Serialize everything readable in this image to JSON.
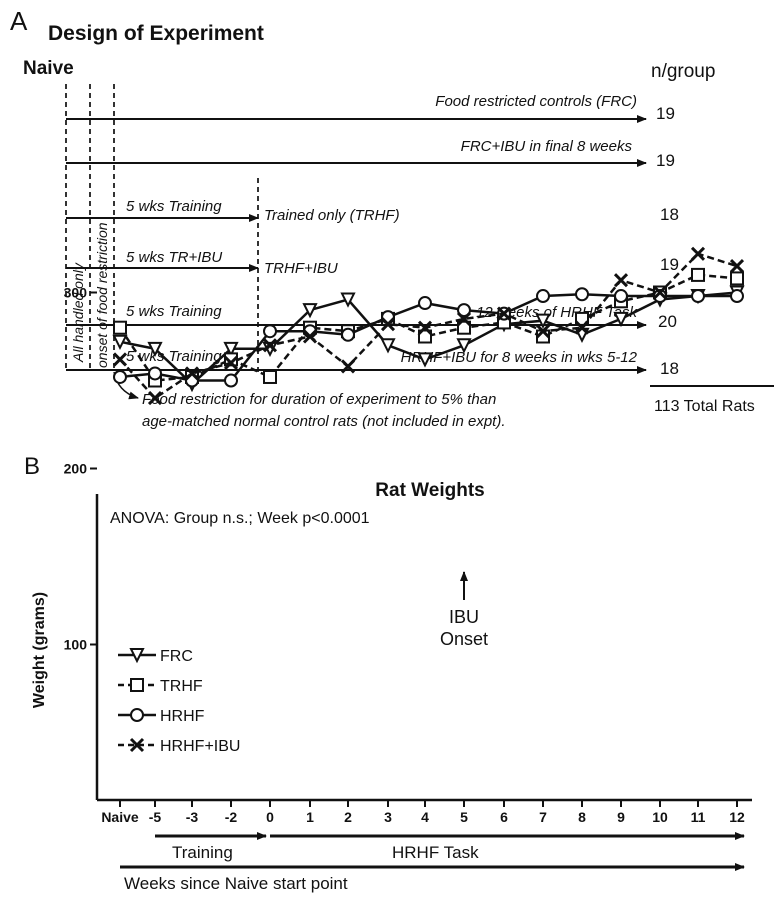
{
  "panel_a": {
    "panel_letter": "A",
    "title": "Design of Experiment",
    "naive_label": "Naive",
    "n_header": "n/group",
    "vertical_labels": [
      "All handled only",
      "onset of food restriction"
    ],
    "rows": [
      {
        "training_label": "",
        "group_label": "Food restricted controls (FRC)",
        "n": "19"
      },
      {
        "training_label": "",
        "group_label": "FRC+IBU in final 8 weeks",
        "n": "19"
      },
      {
        "training_label": "5 wks Training",
        "group_label": "Trained only (TRHF)",
        "n": "18"
      },
      {
        "training_label": "5 wks TR+IBU",
        "group_label": "TRHF+IBU",
        "n": "19"
      },
      {
        "training_label": "5 wks Training",
        "group_label": "12 weeks of HRHF Task",
        "n": "20"
      },
      {
        "training_label": "5 wks Training",
        "group_label": "HRHF+IBU for 8 weeks in wks 5-12",
        "n": "18"
      }
    ],
    "total_label": "113 Total Rats",
    "footnote_line1": "Food restriction for duration of experiment to 5% than",
    "footnote_line2": "age-matched normal control rats (not included in expt)."
  },
  "panel_b": {
    "panel_letter": "B",
    "ibu_annotation_line1": "IBU",
    "ibu_annotation_line2": "Onset",
    "training_label": "Training",
    "task_label": "HRHF Task",
    "weeks_label": "Weeks since Naive start point"
  },
  "chart_data": {
    "type": "line",
    "title": "Rat  Weights",
    "subtitle": "ANOVA: Group n.s.; Week p<0.0001",
    "xlabel": "",
    "ylabel": "Weight  (grams)",
    "categories": [
      "Naive",
      "-5",
      "-3",
      "-2",
      "0",
      "1",
      "2",
      "3",
      "4",
      "5",
      "6",
      "7",
      "8",
      "9",
      "10",
      "11",
      "12"
    ],
    "y_ticks": [
      100,
      200,
      300
    ],
    "ylim": [
      0,
      340
    ],
    "grid": false,
    "legend_position": "left",
    "series": [
      {
        "name": "FRC",
        "marker": "triangle-down",
        "line": "solid",
        "values": [
          272,
          268,
          248,
          268,
          268,
          290,
          296,
          270,
          262,
          270,
          282,
          284,
          276,
          285,
          296,
          298,
          300
        ]
      },
      {
        "name": "TRHF",
        "marker": "square",
        "line": "dashed",
        "values": [
          280,
          250,
          252,
          262,
          252,
          280,
          278,
          285,
          275,
          280,
          283,
          275,
          285,
          295,
          300,
          310,
          308
        ]
      },
      {
        "name": "HRHF",
        "marker": "circle",
        "line": "solid",
        "values": [
          252,
          254,
          250,
          250,
          278,
          278,
          276,
          286,
          294,
          290,
          288,
          298,
          299,
          298,
          298,
          298,
          298
        ]
      },
      {
        "name": "HRHF+IBU",
        "marker": "x",
        "line": "dashed",
        "values": [
          262,
          240,
          254,
          260,
          270,
          275,
          258,
          282,
          280,
          285,
          288,
          278,
          280,
          307,
          300,
          322,
          315
        ]
      }
    ]
  }
}
